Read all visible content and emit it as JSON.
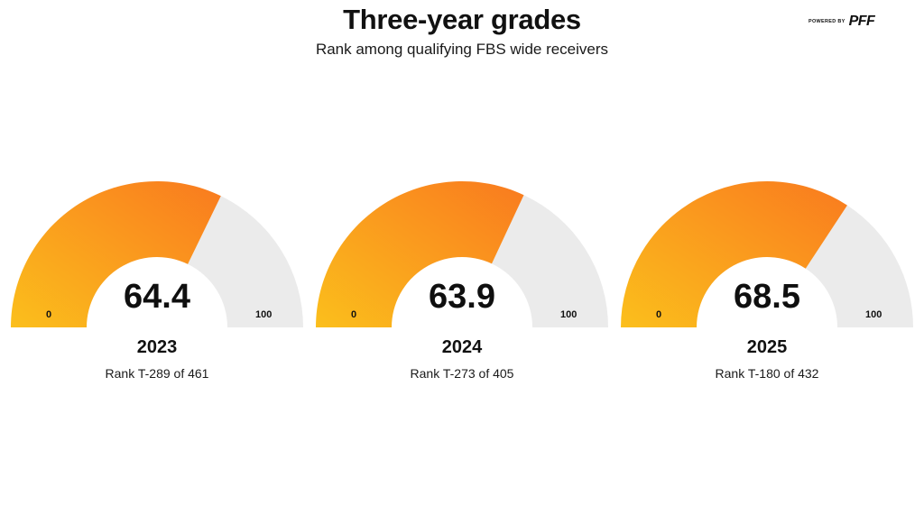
{
  "header": {
    "title": "Three-year grades",
    "subtitle": "Rank among qualifying FBS wide receivers",
    "brand_small": "POWERED BY",
    "brand_logo": "PFF"
  },
  "colors": {
    "fill_start": "#fbbf1c",
    "fill_end": "#f97a1f",
    "track": "#ebebeb"
  },
  "chart_data": [
    {
      "type": "gauge",
      "min": 0,
      "max": 100,
      "value": 64.4,
      "value_label": "64.4",
      "min_label": "0",
      "max_label": "100",
      "year": "2023",
      "rank": "Rank T-289 of 461"
    },
    {
      "type": "gauge",
      "min": 0,
      "max": 100,
      "value": 63.9,
      "value_label": "63.9",
      "min_label": "0",
      "max_label": "100",
      "year": "2024",
      "rank": "Rank T-273 of 405"
    },
    {
      "type": "gauge",
      "min": 0,
      "max": 100,
      "value": 68.5,
      "value_label": "68.5",
      "min_label": "0",
      "max_label": "100",
      "year": "2025",
      "rank": "Rank T-180 of 432"
    }
  ]
}
